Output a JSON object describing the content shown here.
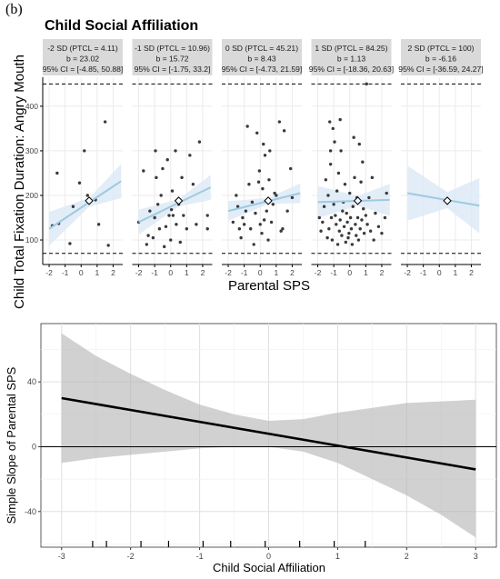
{
  "figure_label": "(b)",
  "chart_data": [
    {
      "type": "scatter",
      "title": "Child Social Affiliation",
      "xlabel": "Parental SPS",
      "ylabel": "Child Total Fixation Duration: Angry Mouth",
      "x_ticks": [
        "-2",
        "-1",
        "0",
        "1",
        "2"
      ],
      "y_ticks": [
        "100",
        "200",
        "300",
        "400"
      ],
      "xlim": [
        -2.4,
        2.6
      ],
      "ylim": [
        45,
        465
      ],
      "reference_lines": [
        70,
        450
      ],
      "grid": true,
      "facets": [
        {
          "strip": [
            "-2 SD (PTCL = 4.11)",
            "b = 23.02",
            "95% CI = [-4.85, 50.88]"
          ],
          "line": {
            "x": [
              -2,
              2.5
            ],
            "y": [
              125,
              232
            ]
          },
          "ci_halfwidth": [
            38,
            10,
            38
          ],
          "marker": {
            "x": 0.5,
            "y": 188
          },
          "points": [
            [
              -1.8,
              132
            ],
            [
              -1.5,
              250
            ],
            [
              -1.4,
              137
            ],
            [
              -0.7,
              92
            ],
            [
              -0.5,
              175
            ],
            [
              -0.1,
              228
            ],
            [
              0.2,
              300
            ],
            [
              0.4,
              200
            ],
            [
              0.9,
              190
            ],
            [
              1.1,
              135
            ],
            [
              1.5,
              365
            ],
            [
              1.7,
              88
            ]
          ]
        },
        {
          "strip": [
            "-1 SD (PTCL = 10.96)",
            "b = 15.72",
            "95% CI = [-1.75, 33.2]"
          ],
          "line": {
            "x": [
              -2,
              2.5
            ],
            "y": [
              140,
              218
            ]
          },
          "ci_halfwidth": [
            28,
            8,
            28
          ],
          "marker": {
            "x": 0.5,
            "y": 188
          },
          "points": [
            [
              -2,
              140
            ],
            [
              -1.7,
              255
            ],
            [
              -1.5,
              90
            ],
            [
              -1.4,
              110
            ],
            [
              -1.3,
              165
            ],
            [
              -1.1,
              105
            ],
            [
              -1,
              150
            ],
            [
              -0.9,
              240
            ],
            [
              -0.8,
              180
            ],
            [
              -0.7,
              125
            ],
            [
              -0.6,
              200
            ],
            [
              -0.5,
              260
            ],
            [
              -0.4,
              85
            ],
            [
              -0.3,
              130
            ],
            [
              -0.2,
              280
            ],
            [
              -0.1,
              155
            ],
            [
              0,
              100
            ],
            [
              0.1,
              210
            ],
            [
              0.15,
              155
            ],
            [
              0.3,
              300
            ],
            [
              0.35,
              135
            ],
            [
              0.5,
              180
            ],
            [
              0.6,
              95
            ],
            [
              0.8,
              155
            ],
            [
              1,
              125
            ],
            [
              1.2,
              290
            ],
            [
              1.4,
              225
            ],
            [
              1.6,
              135
            ],
            [
              1.8,
              320
            ],
            [
              2.3,
              155
            ],
            [
              2.3,
              125
            ],
            [
              -0.95,
              300
            ],
            [
              0.05,
              168
            ],
            [
              0.7,
              240
            ]
          ]
        },
        {
          "strip": [
            "0 SD (PTCL = 45.21)",
            "b = 8.43",
            "95% CI = [-4.73, 21.59]"
          ],
          "line": {
            "x": [
              -2,
              2.5
            ],
            "y": [
              165,
              205
            ]
          },
          "ci_halfwidth": [
            22,
            7,
            22
          ],
          "marker": {
            "x": 0.5,
            "y": 188
          },
          "points": [
            [
              -1.7,
              140
            ],
            [
              -1.5,
              200
            ],
            [
              -1.4,
              175
            ],
            [
              -1.3,
              125
            ],
            [
              -1.2,
              105
            ],
            [
              -1.1,
              150
            ],
            [
              -1,
              135
            ],
            [
              -0.9,
              165
            ],
            [
              -0.8,
              355
            ],
            [
              -0.7,
              225
            ],
            [
              -0.6,
              125
            ],
            [
              -0.5,
              185
            ],
            [
              -0.4,
              90
            ],
            [
              -0.3,
              160
            ],
            [
              -0.2,
              340
            ],
            [
              -0.1,
              230
            ],
            [
              0,
              135
            ],
            [
              0.1,
              115
            ],
            [
              0.2,
              315
            ],
            [
              0.25,
              145
            ],
            [
              0.3,
              290
            ],
            [
              0.4,
              165
            ],
            [
              0.5,
              100
            ],
            [
              0.55,
              235
            ],
            [
              0.6,
              300
            ],
            [
              0.7,
              140
            ],
            [
              0.8,
              180
            ],
            [
              0.9,
              205
            ],
            [
              1,
              200
            ],
            [
              1.2,
              365
            ],
            [
              1.3,
              120
            ],
            [
              1.4,
              125
            ],
            [
              1.5,
              345
            ],
            [
              1.7,
              165
            ],
            [
              1.9,
              260
            ],
            [
              2,
              195
            ],
            [
              0.15,
              215
            ],
            [
              -0.05,
              255
            ]
          ]
        },
        {
          "strip": [
            "1 SD (PTCL = 84.25)",
            "b = 1.13",
            "95% CI = [-18.36, 20.63]"
          ],
          "line": {
            "x": [
              -2,
              2.5
            ],
            "y": [
              185,
              190
            ]
          },
          "ci_halfwidth": [
            36,
            11,
            36
          ],
          "marker": {
            "x": 0.5,
            "y": 188
          },
          "points": [
            [
              -1.9,
              150
            ],
            [
              -1.8,
              120
            ],
            [
              -1.7,
              140
            ],
            [
              -1.6,
              175
            ],
            [
              -1.5,
              235
            ],
            [
              -1.4,
              105
            ],
            [
              -1.35,
              200
            ],
            [
              -1.3,
              125
            ],
            [
              -1.25,
              365
            ],
            [
              -1.2,
              270
            ],
            [
              -1.15,
              150
            ],
            [
              -1.1,
              100
            ],
            [
              -1.05,
              350
            ],
            [
              -1,
              180
            ],
            [
              -0.95,
              320
            ],
            [
              -0.9,
              155
            ],
            [
              -0.85,
              135
            ],
            [
              -0.8,
              210
            ],
            [
              -0.75,
              90
            ],
            [
              -0.7,
              250
            ],
            [
              -0.65,
              120
            ],
            [
              -0.6,
              145
            ],
            [
              -0.55,
              300
            ],
            [
              -0.5,
              110
            ],
            [
              -0.45,
              165
            ],
            [
              -0.4,
              185
            ],
            [
              -0.35,
              130
            ],
            [
              -0.3,
              225
            ],
            [
              -0.25,
              95
            ],
            [
              -0.2,
              160
            ],
            [
              -0.15,
              140
            ],
            [
              -0.1,
              105
            ],
            [
              -0.05,
              115
            ],
            [
              0,
              205
            ],
            [
              0.05,
              150
            ],
            [
              0.1,
              125
            ],
            [
              0.15,
              90
            ],
            [
              0.2,
              175
            ],
            [
              0.25,
              330
            ],
            [
              0.3,
              240
            ],
            [
              0.35,
              135
            ],
            [
              0.4,
              110
            ],
            [
              0.45,
              195
            ],
            [
              0.5,
              150
            ],
            [
              0.55,
              100
            ],
            [
              0.6,
              315
            ],
            [
              0.65,
              125
            ],
            [
              0.7,
              230
            ],
            [
              0.75,
              145
            ],
            [
              0.8,
              275
            ],
            [
              0.85,
              170
            ],
            [
              0.9,
              115
            ],
            [
              1,
              155
            ],
            [
              1.05,
              450
            ],
            [
              1.1,
              135
            ],
            [
              1.2,
              195
            ],
            [
              1.3,
              120
            ],
            [
              1.4,
              240
            ],
            [
              1.5,
              100
            ],
            [
              1.6,
              160
            ],
            [
              1.8,
              130
            ],
            [
              2,
              115
            ],
            [
              2.2,
              150
            ],
            [
              2.3,
              205
            ],
            [
              -1.2,
              300
            ],
            [
              -0.6,
              370
            ]
          ]
        },
        {
          "strip": [
            "2 SD (PTCL = 100)",
            "b = -6.16",
            "95% CI = [-36.59, 24.27]"
          ],
          "line": {
            "x": [
              -2,
              2.5
            ],
            "y": [
              205,
              177
            ]
          },
          "ci_halfwidth": [
            62,
            18,
            62
          ],
          "marker": {
            "x": 0.5,
            "y": 188
          },
          "points": []
        }
      ]
    },
    {
      "type": "line",
      "title": "",
      "xlabel": "Child Social Affiliation",
      "ylabel": "Simple Slope of Parental SPS",
      "x": [
        -3,
        3
      ],
      "y": [
        30,
        -14
      ],
      "band_x": [
        -3,
        -2.5,
        -2,
        -1.5,
        -1,
        -0.5,
        0,
        0.5,
        1,
        1.5,
        2,
        2.5,
        3
      ],
      "band_lower": [
        -10,
        -7,
        -5,
        -3,
        -1,
        0,
        0,
        -3,
        -10,
        -20,
        -30,
        -42,
        -56
      ],
      "band_upper": [
        70,
        56,
        45,
        35,
        26,
        20,
        16,
        17,
        21,
        24,
        27,
        28,
        29
      ],
      "xlim": [
        -3.3,
        3.3
      ],
      "ylim": [
        -62,
        76
      ],
      "x_ticks": [
        "-3",
        "-2",
        "-1",
        "0",
        "1",
        "2",
        "3"
      ],
      "y_ticks": [
        "-40",
        "0",
        "40"
      ],
      "zero_line": 0,
      "rug": [
        -2.55,
        -2.35,
        -1.85,
        -1.45,
        -0.95,
        -0.55,
        -0.05,
        0.45,
        0.95,
        1.4
      ],
      "grid": true
    }
  ]
}
